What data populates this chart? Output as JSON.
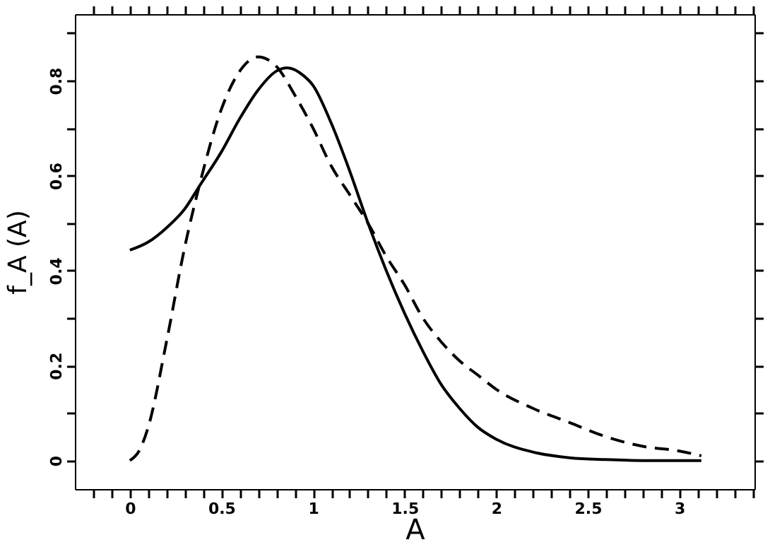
{
  "chart_data": {
    "type": "line",
    "xlabel": "A",
    "ylabel": "f_A (A)",
    "xlim": [
      -0.3,
      3.41
    ],
    "ylim": [
      -0.06,
      0.94
    ],
    "xticks": [
      0,
      {
        "value": 0.1,
        "label": null
      },
      {
        "value": 0.2,
        "label": null
      },
      {
        "value": 0.3,
        "label": null
      },
      {
        "value": 0.4,
        "label": null
      },
      0.5,
      {
        "value": 0.6,
        "label": null
      },
      {
        "value": 0.7,
        "label": null
      },
      {
        "value": 0.8,
        "label": null
      },
      {
        "value": 0.9,
        "label": null
      },
      1,
      {
        "value": 1.1,
        "label": null
      },
      {
        "value": 1.2,
        "label": null
      },
      {
        "value": 1.3,
        "label": null
      },
      {
        "value": 1.4,
        "label": null
      },
      1.5,
      {
        "value": 1.6,
        "label": null
      },
      {
        "value": 1.7,
        "label": null
      },
      {
        "value": 1.8,
        "label": null
      },
      {
        "value": 1.9,
        "label": null
      },
      2,
      {
        "value": 2.1,
        "label": null
      },
      {
        "value": 2.2,
        "label": null
      },
      {
        "value": 2.3,
        "label": null
      },
      {
        "value": 2.4,
        "label": null
      },
      2.5,
      {
        "value": 2.6,
        "label": null
      },
      {
        "value": 2.7,
        "label": null
      },
      {
        "value": 2.8,
        "label": null
      },
      {
        "value": 2.9,
        "label": null
      },
      3,
      {
        "value": 3.1,
        "label": null
      },
      {
        "value": 3.2,
        "label": null
      },
      {
        "value": 3.3,
        "label": null
      },
      {
        "value": 3.4,
        "label": null
      },
      {
        "value": -0.1,
        "label": null
      },
      {
        "value": -0.2,
        "label": null
      }
    ],
    "yticks": [
      0,
      {
        "value": 0.1,
        "label": null
      },
      0.2,
      {
        "value": 0.3,
        "label": null
      },
      0.4,
      {
        "value": 0.5,
        "label": null
      },
      0.6,
      {
        "value": 0.7,
        "label": null
      },
      0.8,
      {
        "value": 0.9,
        "label": null
      }
    ],
    "grid": false,
    "marker": "none",
    "series": [
      {
        "color": "#000000",
        "line_style": "solid",
        "x": [
          0,
          0.1,
          0.2,
          0.3,
          0.38,
          0.5,
          0.6,
          0.7,
          0.8,
          0.86,
          0.95,
          1.0,
          1.1,
          1.2,
          1.3,
          1.4,
          1.5,
          1.6,
          1.7,
          1.8,
          1.9,
          2.0,
          2.2,
          2.4,
          2.6,
          2.8,
          3.12
        ],
        "values": [
          0.443,
          0.46,
          0.49,
          0.53,
          0.578,
          0.65,
          0.72,
          0.78,
          0.82,
          0.827,
          0.81,
          0.79,
          0.71,
          0.61,
          0.5,
          0.4,
          0.31,
          0.23,
          0.16,
          0.11,
          0.07,
          0.045,
          0.018,
          0.006,
          0.002,
          0,
          0
        ]
      },
      {
        "color": "#000000",
        "line_style": "dashed",
        "x": [
          0,
          0.05,
          0.1,
          0.2,
          0.3,
          0.38,
          0.5,
          0.6,
          0.7,
          0.8,
          0.9,
          1.0,
          1.1,
          1.2,
          1.3,
          1.4,
          1.5,
          1.6,
          1.7,
          1.8,
          1.9,
          2.0,
          2.2,
          2.4,
          2.6,
          2.8,
          3.0,
          3.12
        ],
        "values": [
          0,
          0.02,
          0.07,
          0.25,
          0.45,
          0.58,
          0.74,
          0.82,
          0.85,
          0.83,
          0.77,
          0.7,
          0.62,
          0.56,
          0.5,
          0.43,
          0.37,
          0.3,
          0.25,
          0.21,
          0.18,
          0.15,
          0.11,
          0.08,
          0.05,
          0.03,
          0.02,
          0.01
        ]
      }
    ]
  }
}
